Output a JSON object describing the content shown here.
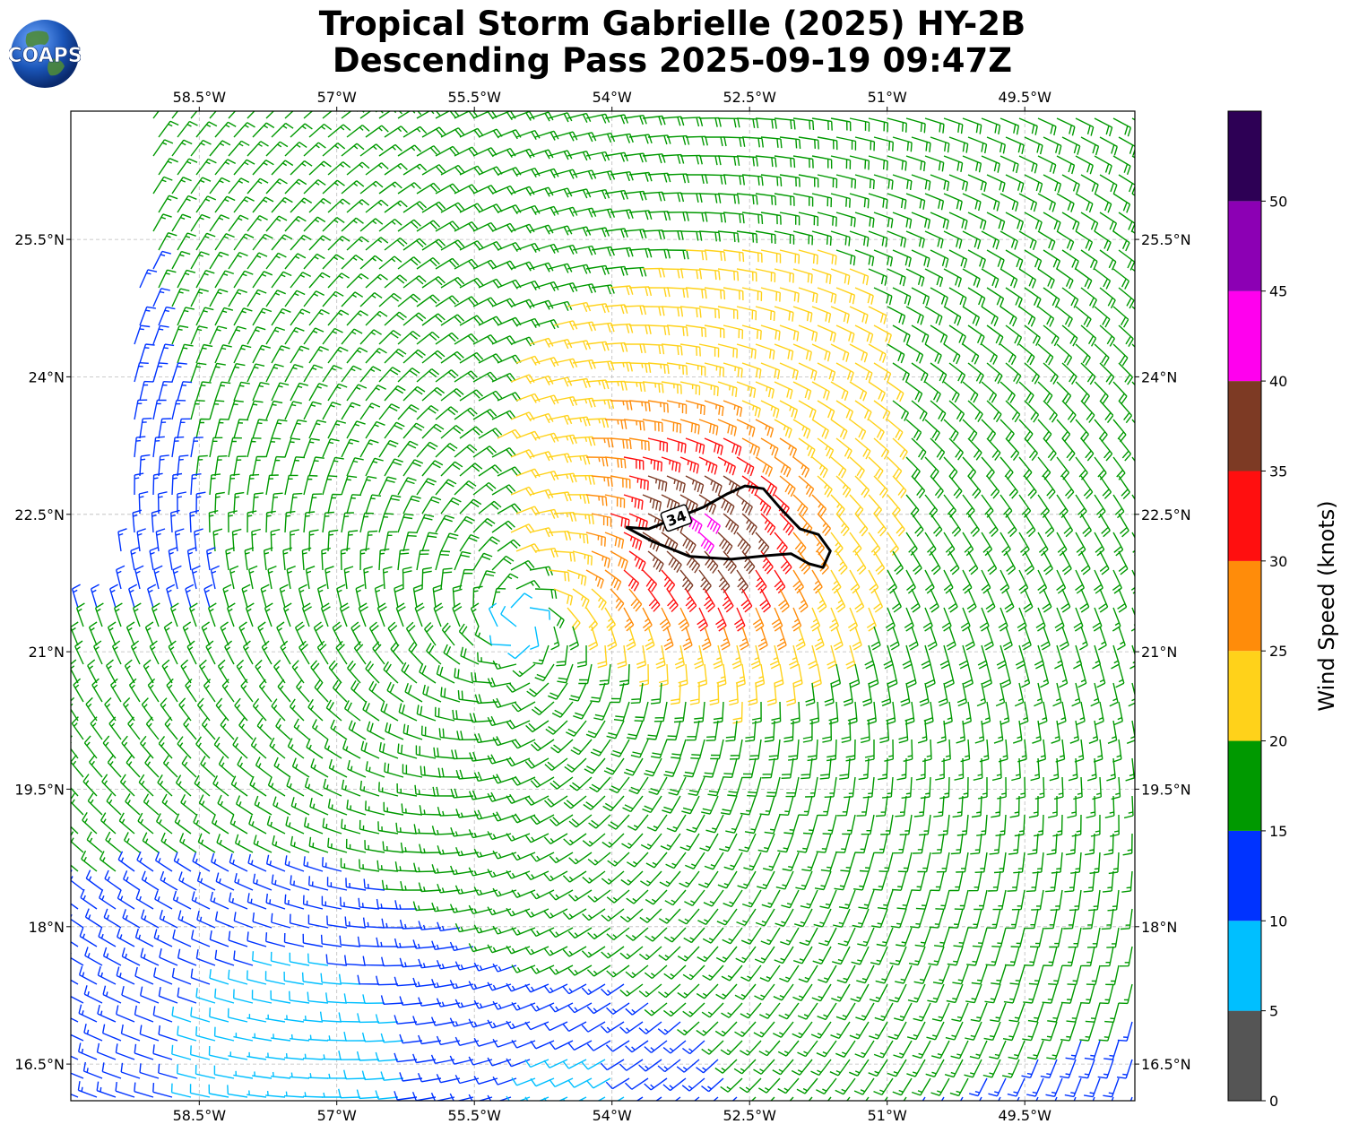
{
  "header": {
    "title_line1": "Tropical Storm Gabrielle (2025) HY-2B",
    "title_line2": "Descending Pass 2025-09-19 09:47Z",
    "logo_text": "COAPS"
  },
  "chart_data": {
    "type": "wind-barb-map",
    "title": "Tropical Storm Gabrielle (2025) HY-2B Descending Pass 2025-09-19 09:47Z",
    "lon_range": [
      -59.9,
      -48.3
    ],
    "lat_range": [
      16.1,
      26.9
    ],
    "lon_ticks": [
      -58.5,
      -57,
      -55.5,
      -54,
      -52.5,
      -51,
      -49.5
    ],
    "lon_tick_labels": [
      "58.5°W",
      "57°W",
      "55.5°W",
      "54°W",
      "52.5°W",
      "51°W",
      "49.5°W"
    ],
    "lat_ticks": [
      16.5,
      18,
      19.5,
      21,
      22.5,
      24,
      25.5
    ],
    "lat_tick_labels": [
      "16.5°N",
      "18°N",
      "19.5°N",
      "21°N",
      "22.5°N",
      "24°N",
      "25.5°N"
    ],
    "grid": true,
    "storm_center": {
      "lon": -55.0,
      "lat": 21.3
    },
    "contour": {
      "label": "34",
      "points": [
        [
          -53.85,
          22.36
        ],
        [
          -53.6,
          22.34
        ],
        [
          -53.3,
          22.46
        ],
        [
          -53.0,
          22.58
        ],
        [
          -52.75,
          22.72
        ],
        [
          -52.55,
          22.81
        ],
        [
          -52.35,
          22.78
        ],
        [
          -52.15,
          22.55
        ],
        [
          -51.95,
          22.34
        ],
        [
          -51.75,
          22.28
        ],
        [
          -51.62,
          22.1
        ],
        [
          -51.7,
          21.92
        ],
        [
          -51.85,
          21.96
        ],
        [
          -52.05,
          22.07
        ],
        [
          -52.3,
          22.05
        ],
        [
          -52.7,
          22.01
        ],
        [
          -53.15,
          22.04
        ],
        [
          -53.55,
          22.2
        ],
        [
          -53.85,
          22.36
        ]
      ]
    },
    "colorbar": {
      "label": "Wind Speed (knots)",
      "ticks": [
        0,
        5,
        10,
        15,
        20,
        25,
        30,
        35,
        40,
        45,
        50
      ],
      "tick_labels": [
        "0",
        "5",
        "10",
        "15",
        "20",
        "25",
        "30",
        "35",
        "40",
        "45",
        "50"
      ],
      "range": [
        0,
        55
      ],
      "bins": [
        {
          "min": 0,
          "max": 5,
          "color": "#555555"
        },
        {
          "min": 5,
          "max": 10,
          "color": "#00bfff"
        },
        {
          "min": 10,
          "max": 15,
          "color": "#0033ff"
        },
        {
          "min": 15,
          "max": 20,
          "color": "#009900"
        },
        {
          "min": 20,
          "max": 25,
          "color": "#ffd21a"
        },
        {
          "min": 25,
          "max": 30,
          "color": "#ff8c0a"
        },
        {
          "min": 30,
          "max": 35,
          "color": "#ff0f0f"
        },
        {
          "min": 35,
          "max": 40,
          "color": "#7d3a24"
        },
        {
          "min": 40,
          "max": 45,
          "color": "#ff00ee"
        },
        {
          "min": 45,
          "max": 50,
          "color": "#8c00b4"
        },
        {
          "min": 50,
          "max": 55,
          "color": "#2d0055"
        }
      ]
    }
  }
}
